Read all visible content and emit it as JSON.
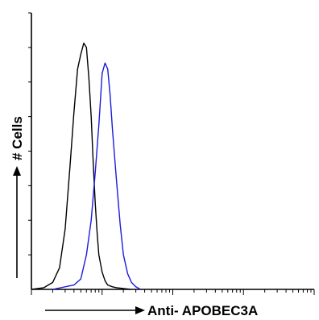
{
  "chart_data": {
    "type": "line",
    "xlabel": "Anti- APOBEC3A",
    "ylabel": "# Cells",
    "x_scale": "log",
    "xlim": [
      1,
      10000
    ],
    "ylim": [
      0,
      320
    ],
    "grid": false,
    "legend": "none",
    "series": [
      {
        "color": "#000000",
        "x": [
          1,
          1.5,
          2,
          2.5,
          3,
          3.5,
          4,
          4.5,
          5,
          5.5,
          6,
          6.5,
          7,
          7.5,
          8,
          8.5,
          9,
          10,
          11,
          12,
          14,
          16,
          20,
          25
        ],
        "y": [
          0,
          2,
          8,
          25,
          70,
          140,
          205,
          255,
          272,
          285,
          280,
          245,
          200,
          145,
          100,
          65,
          40,
          20,
          10,
          5,
          3,
          2,
          1,
          0
        ]
      },
      {
        "color": "#1a1adc",
        "x": [
          2,
          4,
          5,
          6,
          7,
          8,
          9,
          10,
          11,
          12,
          13,
          14,
          16,
          18,
          20,
          23,
          26,
          30,
          35
        ],
        "y": [
          0,
          5,
          12,
          40,
          80,
          135,
          190,
          250,
          262,
          255,
          225,
          185,
          125,
          75,
          40,
          18,
          8,
          3,
          0
        ]
      }
    ],
    "axis_color": "#000000"
  }
}
